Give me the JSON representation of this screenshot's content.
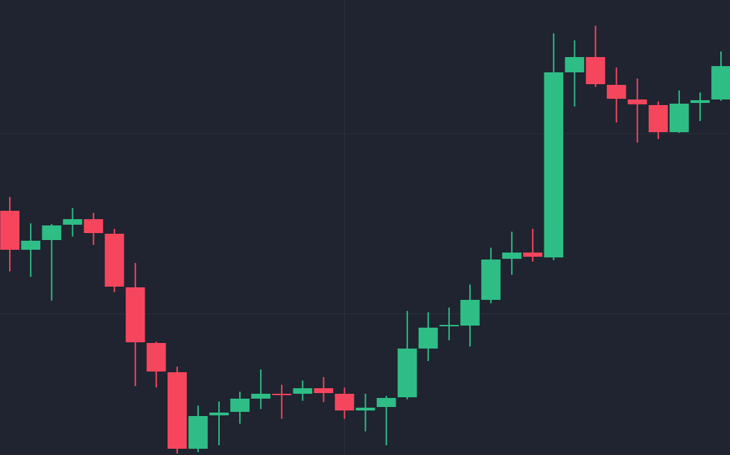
{
  "chart_data": {
    "type": "candlestick",
    "x": [
      0,
      1,
      2,
      3,
      4,
      5,
      6,
      7,
      8,
      9,
      10,
      11,
      12,
      13,
      14,
      15,
      16,
      17,
      18,
      19,
      20,
      21,
      22,
      23,
      24,
      25,
      26,
      27,
      28,
      29,
      30,
      31,
      32,
      33,
      34
    ],
    "open": [
      351,
      295,
      309,
      331,
      339,
      318,
      241,
      161,
      119,
      9,
      57,
      62,
      81,
      88,
      88,
      96,
      88,
      64,
      69,
      83,
      153,
      185,
      186,
      223,
      282,
      291,
      284,
      550,
      572,
      532,
      511,
      503,
      464,
      506,
      511
    ],
    "high": [
      371,
      333,
      332,
      355,
      348,
      325,
      276,
      163,
      127,
      71,
      77,
      91,
      123,
      101,
      107,
      112,
      97,
      88,
      85,
      207,
      205,
      212,
      245,
      298,
      321,
      325,
      606,
      596,
      617,
      557,
      541,
      508,
      524,
      521,
      580
    ],
    "low": [
      264,
      256,
      222,
      314,
      302,
      234,
      99,
      97,
      2,
      4,
      14,
      45,
      66,
      52,
      78,
      76,
      52,
      34,
      14,
      80,
      135,
      165,
      156,
      218,
      259,
      278,
      280,
      501,
      529,
      478,
      449,
      454,
      463,
      480,
      509
    ],
    "close": [
      295,
      308,
      330,
      339,
      319,
      242,
      162,
      120,
      9,
      56,
      61,
      81,
      88,
      87,
      96,
      89,
      64,
      68,
      82,
      153,
      183,
      187,
      223,
      281,
      291,
      285,
      550,
      572,
      533,
      512,
      504,
      464,
      505,
      510,
      559
    ],
    "up_color": "#2ebd85",
    "down_color": "#f6465d",
    "xlim": [
      -0.47,
      34.43
    ],
    "ylim": [
      0,
      654
    ],
    "xticks": [
      16
    ],
    "yticks": [
      203,
      462
    ],
    "grid": true
  }
}
